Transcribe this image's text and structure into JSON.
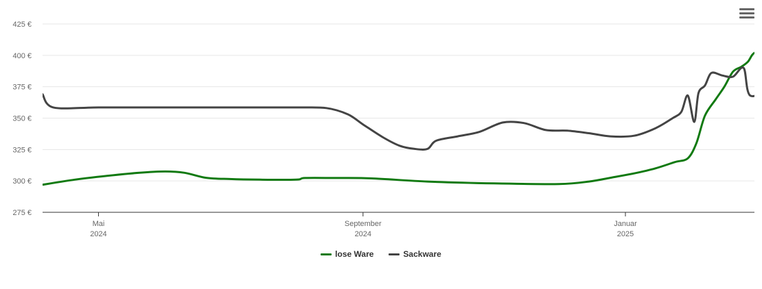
{
  "chart_data": {
    "type": "line",
    "title": "",
    "xlabel": "",
    "ylabel": "",
    "ylim": [
      275,
      425
    ],
    "y_ticks": [
      275,
      300,
      325,
      350,
      375,
      400,
      425
    ],
    "y_tick_suffix": " €",
    "x_ticks": [
      {
        "date": "2024-05-01",
        "line1": "Mai",
        "line2": "2024"
      },
      {
        "date": "2024-09-01",
        "line1": "September",
        "line2": "2024"
      },
      {
        "date": "2025-01-01",
        "line1": "Januar",
        "line2": "2025"
      }
    ],
    "x_range": [
      "2024-04-05",
      "2025-03-02"
    ],
    "grid": true,
    "legend_position": "bottom-center",
    "series": [
      {
        "name": "lose Ware",
        "color": "#117a11",
        "points": [
          [
            "2024-04-05",
            297
          ],
          [
            "2024-04-20",
            301
          ],
          [
            "2024-05-05",
            304
          ],
          [
            "2024-05-20",
            306.5
          ],
          [
            "2024-06-01",
            307.5
          ],
          [
            "2024-06-10",
            306.5
          ],
          [
            "2024-06-20",
            302.5
          ],
          [
            "2024-07-01",
            301.5
          ],
          [
            "2024-07-15",
            301
          ],
          [
            "2024-08-01",
            301
          ],
          [
            "2024-08-05",
            302.3
          ],
          [
            "2024-08-20",
            302.3
          ],
          [
            "2024-09-05",
            302
          ],
          [
            "2024-10-01",
            299.5
          ],
          [
            "2024-11-01",
            298
          ],
          [
            "2024-12-01",
            297.5
          ],
          [
            "2024-12-15",
            299.5
          ],
          [
            "2024-12-25",
            302.5
          ],
          [
            "2025-01-05",
            306
          ],
          [
            "2025-01-15",
            310
          ],
          [
            "2025-01-24",
            315
          ],
          [
            "2025-01-30",
            318
          ],
          [
            "2025-02-03",
            330
          ],
          [
            "2025-02-07",
            352
          ],
          [
            "2025-02-12",
            365
          ],
          [
            "2025-02-16",
            375
          ],
          [
            "2025-02-20",
            387
          ],
          [
            "2025-02-24",
            391
          ],
          [
            "2025-02-27",
            395
          ],
          [
            "2025-03-02",
            402
          ],
          [
            "2025-03-07",
            401
          ],
          [
            "2025-03-10",
            397
          ]
        ]
      },
      {
        "name": "Sackware",
        "color": "#444444",
        "points": [
          [
            "2024-04-05",
            369
          ],
          [
            "2024-04-10",
            358.5
          ],
          [
            "2024-05-01",
            358.5
          ],
          [
            "2024-06-01",
            358.5
          ],
          [
            "2024-07-01",
            358.5
          ],
          [
            "2024-08-01",
            358.5
          ],
          [
            "2024-08-15",
            358
          ],
          [
            "2024-08-25",
            353
          ],
          [
            "2024-09-01",
            345
          ],
          [
            "2024-09-10",
            335
          ],
          [
            "2024-09-18",
            328
          ],
          [
            "2024-09-25",
            325.5
          ],
          [
            "2024-10-01",
            325.5
          ],
          [
            "2024-10-05",
            332
          ],
          [
            "2024-10-15",
            335.5
          ],
          [
            "2024-10-25",
            339
          ],
          [
            "2024-11-05",
            346.5
          ],
          [
            "2024-11-15",
            346
          ],
          [
            "2024-11-25",
            340.5
          ],
          [
            "2024-12-05",
            340
          ],
          [
            "2024-12-15",
            338
          ],
          [
            "2024-12-25",
            335.5
          ],
          [
            "2025-01-05",
            336
          ],
          [
            "2025-01-15",
            342
          ],
          [
            "2025-01-23",
            350
          ],
          [
            "2025-01-27",
            355
          ],
          [
            "2025-01-30",
            368
          ],
          [
            "2025-02-02",
            347
          ],
          [
            "2025-02-04",
            370
          ],
          [
            "2025-02-07",
            376
          ],
          [
            "2025-02-10",
            386
          ],
          [
            "2025-02-15",
            384
          ],
          [
            "2025-02-20",
            383
          ],
          [
            "2025-02-25",
            390
          ],
          [
            "2025-02-28",
            368
          ],
          [
            "2025-03-10",
            374
          ]
        ]
      }
    ]
  }
}
